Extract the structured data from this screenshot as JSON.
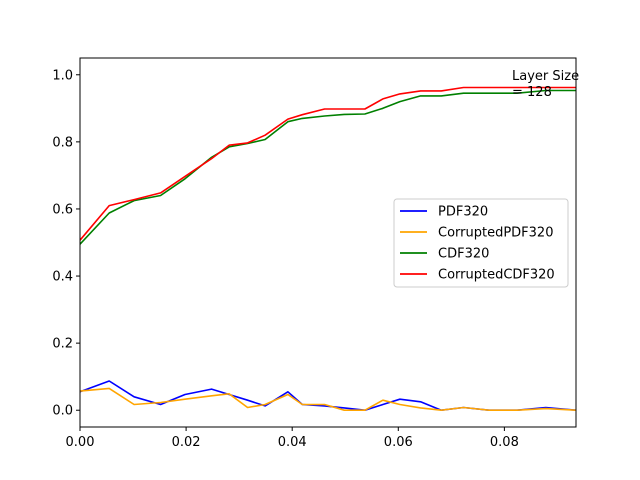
{
  "chart_data": {
    "type": "line",
    "annotation": [
      "Layer Size",
      "= 128"
    ],
    "xlim": [
      0.0,
      0.0935
    ],
    "ylim": [
      -0.05,
      1.05
    ],
    "xticks": [
      0.0,
      0.02,
      0.04,
      0.06,
      0.08
    ],
    "xtick_labels": [
      "0.00",
      "0.02",
      "0.04",
      "0.06",
      "0.08"
    ],
    "yticks": [
      0.0,
      0.2,
      0.4,
      0.6,
      0.8,
      1.0
    ],
    "ytick_labels": [
      "0.0",
      "0.2",
      "0.4",
      "0.6",
      "0.8",
      "1.0"
    ],
    "grid": false,
    "legend_position": "center-right",
    "x": [
      0.0,
      0.0055,
      0.0102,
      0.0152,
      0.0198,
      0.0248,
      0.0281,
      0.0316,
      0.0349,
      0.0392,
      0.0419,
      0.0461,
      0.0498,
      0.0537,
      0.0571,
      0.0603,
      0.0642,
      0.0681,
      0.0723,
      0.0771,
      0.0824,
      0.0878,
      0.0935
    ],
    "series": [
      {
        "name": "PDF320",
        "color": "#0000ff",
        "values": [
          0.055,
          0.087,
          0.04,
          0.017,
          0.047,
          0.063,
          0.047,
          0.03,
          0.013,
          0.055,
          0.017,
          0.013,
          0.007,
          0.0,
          0.017,
          0.033,
          0.025,
          0.0,
          0.008,
          0.0,
          0.0,
          0.008,
          0.0
        ]
      },
      {
        "name": "CorruptedPDF320",
        "color": "#ffa500",
        "values": [
          0.057,
          0.065,
          0.017,
          0.023,
          0.033,
          0.043,
          0.049,
          0.008,
          0.017,
          0.047,
          0.017,
          0.017,
          0.0,
          0.0,
          0.03,
          0.017,
          0.007,
          0.0,
          0.008,
          0.0,
          0.0,
          0.005,
          0.0
        ]
      },
      {
        "name": "CDF320",
        "color": "#008000",
        "values": [
          0.495,
          0.588,
          0.625,
          0.64,
          0.69,
          0.754,
          0.785,
          0.795,
          0.807,
          0.86,
          0.87,
          0.877,
          0.882,
          0.883,
          0.9,
          0.92,
          0.937,
          0.937,
          0.945,
          0.945,
          0.945,
          0.953,
          0.953
        ]
      },
      {
        "name": "CorruptedCDF320",
        "color": "#ff0000",
        "values": [
          0.507,
          0.61,
          0.628,
          0.648,
          0.697,
          0.75,
          0.79,
          0.797,
          0.82,
          0.868,
          0.881,
          0.898,
          0.898,
          0.898,
          0.928,
          0.943,
          0.952,
          0.952,
          0.962,
          0.962,
          0.962,
          0.962,
          0.962
        ]
      }
    ]
  }
}
